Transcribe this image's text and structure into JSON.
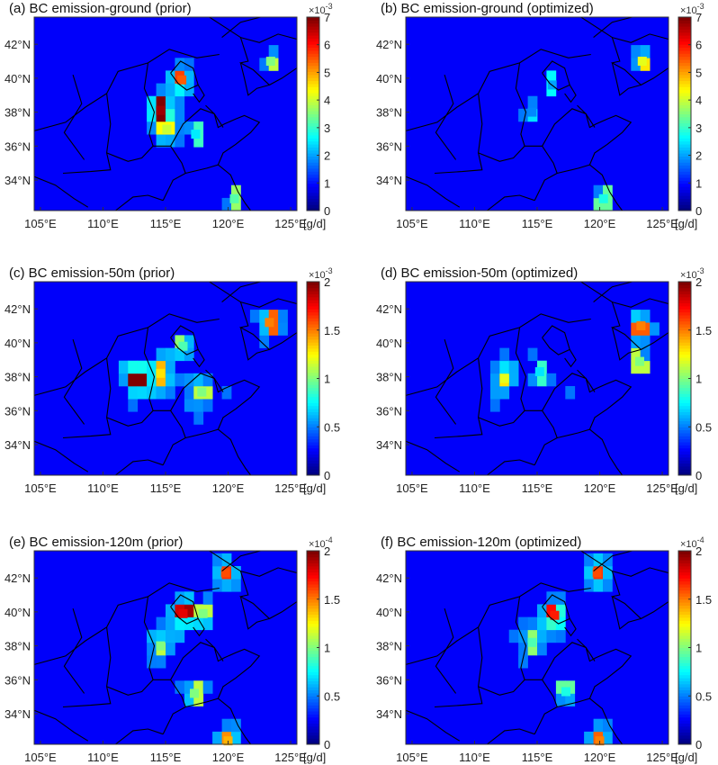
{
  "figure": {
    "unit_label": "[g/d]"
  },
  "chart_data": [
    {
      "type": "heatmap",
      "title": "(a) BC emission-ground (prior)",
      "x_ticks": [
        "105°E",
        "110°E",
        "115°E",
        "120°E",
        "125°E"
      ],
      "y_ticks": [
        "34°N",
        "36°N",
        "38°N",
        "40°N",
        "42°N"
      ],
      "xlim": [
        104.5,
        125.5
      ],
      "ylim": [
        32.2,
        43.6
      ],
      "colorbar": {
        "exponent": "×10",
        "exponent_power": "-3",
        "ticks": [
          "0",
          "1",
          "2",
          "3",
          "4",
          "5",
          "6",
          "7"
        ],
        "range": [
          0,
          7
        ],
        "colormap": "jet"
      },
      "hotspots": [
        {
          "lon": 114.6,
          "lat": 38.1,
          "value": 6.8
        },
        {
          "lon": 116.3,
          "lat": 39.9,
          "value": 5.5
        },
        {
          "lon": 115.1,
          "lat": 37.0,
          "value": 4.0
        },
        {
          "lon": 123.4,
          "lat": 41.0,
          "value": 3.5
        },
        {
          "lon": 120.5,
          "lat": 32.9,
          "value": 3.2
        },
        {
          "lon": 117.4,
          "lat": 36.7,
          "value": 2.5
        }
      ]
    },
    {
      "type": "heatmap",
      "title": "(b) BC emission-ground (optimized)",
      "x_ticks": [
        "105°E",
        "110°E",
        "115°E",
        "120°E",
        "125°E"
      ],
      "y_ticks": [
        "34°N",
        "36°N",
        "38°N",
        "40°N",
        "42°N"
      ],
      "xlim": [
        104.5,
        125.5
      ],
      "ylim": [
        32.2,
        43.6
      ],
      "colorbar": {
        "exponent": "×10",
        "exponent_power": "-3",
        "ticks": [
          "0",
          "1",
          "2",
          "3",
          "4",
          "5",
          "6",
          "7"
        ],
        "range": [
          0,
          7
        ],
        "colormap": "jet"
      },
      "hotspots": [
        {
          "lon": 123.4,
          "lat": 41.0,
          "value": 4.2
        },
        {
          "lon": 120.3,
          "lat": 32.9,
          "value": 2.8
        },
        {
          "lon": 116.2,
          "lat": 39.6,
          "value": 2.0
        },
        {
          "lon": 114.6,
          "lat": 38.0,
          "value": 1.8
        }
      ]
    },
    {
      "type": "heatmap",
      "title": "(c) BC emission-50m (prior)",
      "x_ticks": [
        "105°E",
        "110°E",
        "115°E",
        "120°E",
        "125°E"
      ],
      "y_ticks": [
        "34°N",
        "36°N",
        "38°N",
        "40°N",
        "42°N"
      ],
      "xlim": [
        104.5,
        125.5
      ],
      "ylim": [
        32.2,
        43.6
      ],
      "colorbar": {
        "exponent": "×10",
        "exponent_power": "-3",
        "ticks": [
          "0",
          "0.5",
          "1",
          "1.5",
          "2"
        ],
        "range": [
          0,
          2
        ],
        "colormap": "jet"
      },
      "hotspots": [
        {
          "lon": 112.6,
          "lat": 37.9,
          "value": 2.0
        },
        {
          "lon": 114.6,
          "lat": 38.2,
          "value": 1.3
        },
        {
          "lon": 123.3,
          "lat": 41.2,
          "value": 1.5
        },
        {
          "lon": 117.9,
          "lat": 37.1,
          "value": 1.0
        },
        {
          "lon": 116.4,
          "lat": 39.8,
          "value": 0.9
        }
      ]
    },
    {
      "type": "heatmap",
      "title": "(d) BC emission-50m (optimized)",
      "x_ticks": [
        "105°E",
        "110°E",
        "115°E",
        "120°E",
        "125°E"
      ],
      "y_ticks": [
        "34°N",
        "36°N",
        "38°N",
        "40°N",
        "42°N"
      ],
      "xlim": [
        104.5,
        125.5
      ],
      "ylim": [
        32.2,
        43.6
      ],
      "colorbar": {
        "exponent": "×10",
        "exponent_power": "-3",
        "ticks": [
          "0",
          "0.5",
          "1",
          "1.5",
          "2"
        ],
        "range": [
          0,
          2
        ],
        "colormap": "jet"
      },
      "hotspots": [
        {
          "lon": 112.4,
          "lat": 37.9,
          "value": 1.2
        },
        {
          "lon": 123.3,
          "lat": 41.0,
          "value": 1.5
        },
        {
          "lon": 123.2,
          "lat": 38.9,
          "value": 1.0
        },
        {
          "lon": 115.2,
          "lat": 38.3,
          "value": 0.7
        }
      ]
    },
    {
      "type": "heatmap",
      "title": "(e) BC emission-120m (prior)",
      "x_ticks": [
        "105°E",
        "110°E",
        "115°E",
        "120°E",
        "125°E"
      ],
      "y_ticks": [
        "34°N",
        "36°N",
        "38°N",
        "40°N",
        "42°N"
      ],
      "xlim": [
        104.5,
        125.5
      ],
      "ylim": [
        32.2,
        43.6
      ],
      "colorbar": {
        "exponent": "×10",
        "exponent_power": "-4",
        "ticks": [
          "0",
          "0.5",
          "1",
          "1.5",
          "2"
        ],
        "range": [
          0,
          2
        ],
        "colormap": "jet"
      },
      "hotspots": [
        {
          "lon": 116.4,
          "lat": 39.9,
          "value": 1.8
        },
        {
          "lon": 119.8,
          "lat": 42.3,
          "value": 1.6
        },
        {
          "lon": 120.0,
          "lat": 32.4,
          "value": 1.4
        },
        {
          "lon": 114.6,
          "lat": 38.0,
          "value": 1.0
        },
        {
          "lon": 117.3,
          "lat": 35.2,
          "value": 1.0
        },
        {
          "lon": 118.0,
          "lat": 39.9,
          "value": 1.0
        }
      ]
    },
    {
      "type": "heatmap",
      "title": "(f) BC emission-120m (optimized)",
      "x_ticks": [
        "105°E",
        "110°E",
        "115°E",
        "120°E",
        "125°E"
      ],
      "y_ticks": [
        "34°N",
        "36°N",
        "38°N",
        "40°N",
        "42°N"
      ],
      "xlim": [
        104.5,
        125.5
      ],
      "ylim": [
        32.2,
        43.6
      ],
      "colorbar": {
        "exponent": "×10",
        "exponent_power": "-4",
        "ticks": [
          "0",
          "0.5",
          "1",
          "1.5",
          "2"
        ],
        "range": [
          0,
          2
        ],
        "colormap": "jet"
      },
      "hotspots": [
        {
          "lon": 116.4,
          "lat": 39.8,
          "value": 1.7
        },
        {
          "lon": 119.8,
          "lat": 42.3,
          "value": 1.6
        },
        {
          "lon": 120.0,
          "lat": 32.4,
          "value": 1.5
        },
        {
          "lon": 114.6,
          "lat": 38.2,
          "value": 0.9
        },
        {
          "lon": 117.3,
          "lat": 35.3,
          "value": 0.8
        }
      ]
    }
  ]
}
